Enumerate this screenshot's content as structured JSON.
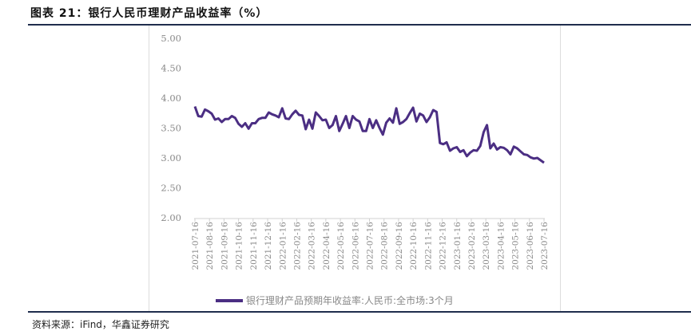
{
  "title": "图表 21：银行人民币理财产品收益率（%）",
  "source": "资料来源：iFind，华鑫证券研究",
  "colors": {
    "line": "#4b2e83",
    "rule": "#1f2d4d"
  },
  "chart_data": {
    "type": "line",
    "title": "图表 21：银行人民币理财产品收益率（%）",
    "xlabel": "",
    "ylabel": "",
    "ylim": [
      2.0,
      5.0
    ],
    "yticks": [
      "5.00",
      "4.50",
      "4.00",
      "3.50",
      "3.00",
      "2.50",
      "2.00"
    ],
    "ytick_values": [
      5.0,
      4.5,
      4.0,
      3.5,
      3.0,
      2.5,
      2.0
    ],
    "xticks": [
      "2021-07-16",
      "2021-08-16",
      "2021-09-16",
      "2021-10-16",
      "2021-11-16",
      "2021-12-16",
      "2022-01-16",
      "2022-02-16",
      "2022-03-16",
      "2022-04-16",
      "2022-05-16",
      "2022-06-16",
      "2022-07-16",
      "2022-08-16",
      "2022-09-16",
      "2022-10-16",
      "2022-11-16",
      "2022-12-16",
      "2023-01-16",
      "2023-02-16",
      "2023-03-16",
      "2023-04-16",
      "2023-05-16",
      "2023-06-16",
      "2023-07-16"
    ],
    "grid": false,
    "legend_position": "bottom",
    "series": [
      {
        "name": "银行理财产品预期年收益率:人民币:全市场:3个月",
        "x_range": [
          "2021-07-16",
          "2023-07-16"
        ],
        "values": [
          3.86,
          3.7,
          3.69,
          3.81,
          3.78,
          3.74,
          3.64,
          3.66,
          3.6,
          3.65,
          3.65,
          3.7,
          3.67,
          3.57,
          3.52,
          3.58,
          3.49,
          3.58,
          3.58,
          3.65,
          3.67,
          3.67,
          3.76,
          3.73,
          3.71,
          3.68,
          3.83,
          3.66,
          3.65,
          3.73,
          3.79,
          3.72,
          3.71,
          3.48,
          3.64,
          3.49,
          3.76,
          3.7,
          3.63,
          3.64,
          3.5,
          3.55,
          3.7,
          3.45,
          3.57,
          3.7,
          3.5,
          3.7,
          3.64,
          3.61,
          3.45,
          3.45,
          3.65,
          3.5,
          3.63,
          3.5,
          3.39,
          3.59,
          3.66,
          3.59,
          3.83,
          3.57,
          3.6,
          3.65,
          3.75,
          3.84,
          3.61,
          3.74,
          3.71,
          3.6,
          3.68,
          3.8,
          3.77,
          3.25,
          3.23,
          3.26,
          3.12,
          3.16,
          3.18,
          3.1,
          3.13,
          3.03,
          3.09,
          3.13,
          3.12,
          3.2,
          3.43,
          3.55,
          3.16,
          3.24,
          3.14,
          3.18,
          3.17,
          3.13,
          3.06,
          3.19,
          3.16,
          3.11,
          3.06,
          3.05,
          3.01,
          2.99,
          3.0,
          2.96,
          2.92
        ]
      }
    ]
  }
}
